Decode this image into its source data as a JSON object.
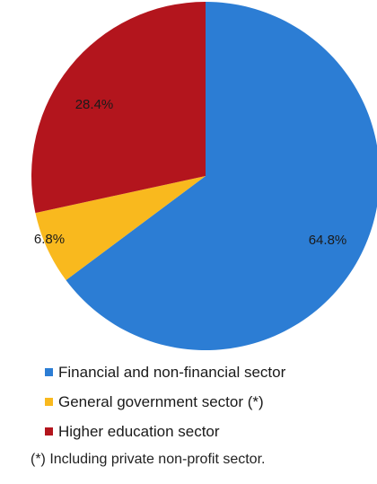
{
  "chart_data": {
    "type": "pie",
    "categories": [
      "Financial and non-financial sector",
      "General government sector (*)",
      "Higher education sector"
    ],
    "values": [
      64.8,
      6.8,
      28.4
    ],
    "labels": [
      "64.8%",
      "6.8%",
      "28.4%"
    ],
    "colors": [
      "#2c7dd4",
      "#f9b91e",
      "#b3151d"
    ],
    "start_angle": "12 o'clock",
    "direction": "clockwise",
    "legend_position": "bottom"
  },
  "footnote": "(*) Including private non-profit sector."
}
